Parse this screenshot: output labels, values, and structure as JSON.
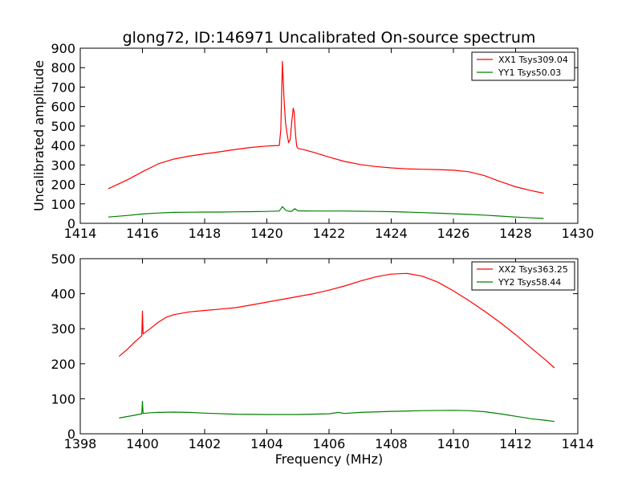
{
  "chart_data": [
    {
      "type": "line",
      "title": "glong72, ID:146971 Uncalibrated On-source spectrum",
      "xlabel": "",
      "ylabel": "Uncalibrated amplitude",
      "xlim": [
        1414,
        1430
      ],
      "ylim": [
        0,
        900
      ],
      "xticks": [
        1414,
        1416,
        1418,
        1420,
        1422,
        1424,
        1426,
        1428,
        1430
      ],
      "yticks": [
        0,
        100,
        200,
        300,
        400,
        500,
        600,
        700,
        800,
        900
      ],
      "legend_position": "top-right",
      "series": [
        {
          "name": "XX1 Tsys309.04",
          "color": "#ff0000",
          "x": [
            1414.9,
            1415.5,
            1416.0,
            1416.5,
            1417.0,
            1417.5,
            1418.0,
            1418.5,
            1419.0,
            1419.5,
            1420.0,
            1420.4,
            1420.45,
            1420.5,
            1420.55,
            1420.6,
            1420.65,
            1420.7,
            1420.75,
            1420.8,
            1420.85,
            1420.88,
            1420.92,
            1420.96,
            1421.0,
            1421.2,
            1421.5,
            1422.0,
            1422.5,
            1423.0,
            1423.5,
            1424.0,
            1424.5,
            1425.0,
            1425.5,
            1426.0,
            1426.5,
            1427.0,
            1427.5,
            1428.0,
            1428.5,
            1428.9
          ],
          "values": [
            178,
            222,
            265,
            305,
            330,
            345,
            357,
            368,
            380,
            390,
            397,
            400,
            480,
            832,
            650,
            520,
            460,
            415,
            430,
            520,
            592,
            570,
            460,
            395,
            385,
            378,
            365,
            340,
            318,
            302,
            292,
            285,
            280,
            278,
            276,
            273,
            265,
            245,
            215,
            188,
            168,
            155
          ]
        },
        {
          "name": "YY1 Tsys50.03",
          "color": "#008000",
          "x": [
            1414.9,
            1415.5,
            1416.0,
            1416.5,
            1417.0,
            1417.5,
            1418.0,
            1418.5,
            1419.0,
            1419.5,
            1420.0,
            1420.4,
            1420.5,
            1420.6,
            1420.7,
            1420.8,
            1420.9,
            1421.0,
            1421.5,
            1422.0,
            1422.5,
            1423.0,
            1423.5,
            1424.0,
            1424.5,
            1425.0,
            1425.5,
            1426.0,
            1426.5,
            1427.0,
            1427.5,
            1428.0,
            1428.5,
            1428.9
          ],
          "values": [
            32,
            40,
            48,
            53,
            56,
            57,
            58,
            58,
            59,
            60,
            61,
            63,
            86,
            68,
            62,
            62,
            75,
            64,
            63,
            63,
            63,
            62,
            61,
            60,
            58,
            55,
            52,
            49,
            46,
            42,
            37,
            32,
            28,
            25
          ]
        }
      ]
    },
    {
      "type": "line",
      "title": "",
      "xlabel": "Frequency (MHz)",
      "ylabel": "",
      "xlim": [
        1398,
        1414
      ],
      "ylim": [
        0,
        500
      ],
      "xticks": [
        1398,
        1400,
        1402,
        1404,
        1406,
        1408,
        1410,
        1412,
        1414
      ],
      "yticks": [
        0,
        100,
        200,
        300,
        400,
        500
      ],
      "legend_position": "top-right",
      "series": [
        {
          "name": "XX2 Tsys363.25",
          "color": "#ff0000",
          "x": [
            1399.25,
            1399.5,
            1399.75,
            1399.98,
            1400.0,
            1400.02,
            1400.25,
            1400.5,
            1400.75,
            1401.0,
            1401.5,
            1402.0,
            1402.5,
            1403.0,
            1403.5,
            1404.0,
            1404.5,
            1405.0,
            1405.5,
            1406.0,
            1406.5,
            1407.0,
            1407.5,
            1408.0,
            1408.5,
            1409.0,
            1409.5,
            1410.0,
            1410.5,
            1411.0,
            1411.5,
            1412.0,
            1412.5,
            1413.0,
            1413.25
          ],
          "values": [
            221,
            240,
            262,
            280,
            350,
            285,
            300,
            318,
            332,
            340,
            348,
            352,
            356,
            360,
            368,
            376,
            384,
            392,
            400,
            410,
            422,
            436,
            448,
            456,
            458,
            450,
            433,
            408,
            380,
            350,
            318,
            283,
            245,
            208,
            188
          ]
        },
        {
          "name": "YY2 Tsys58.44",
          "color": "#008000",
          "x": [
            1399.25,
            1399.5,
            1399.75,
            1399.98,
            1400.0,
            1400.02,
            1400.25,
            1400.5,
            1401.0,
            1401.5,
            1402.0,
            1403.0,
            1404.0,
            1405.0,
            1406.0,
            1406.3,
            1406.5,
            1407.0,
            1408.0,
            1409.0,
            1410.0,
            1410.5,
            1411.0,
            1411.5,
            1412.0,
            1412.5,
            1413.0,
            1413.25
          ],
          "values": [
            45,
            49,
            53,
            57,
            93,
            58,
            60,
            61,
            62,
            61,
            59,
            56,
            55,
            55,
            57,
            61,
            58,
            61,
            64,
            66,
            67,
            66,
            63,
            57,
            50,
            43,
            38,
            35
          ]
        }
      ]
    }
  ]
}
